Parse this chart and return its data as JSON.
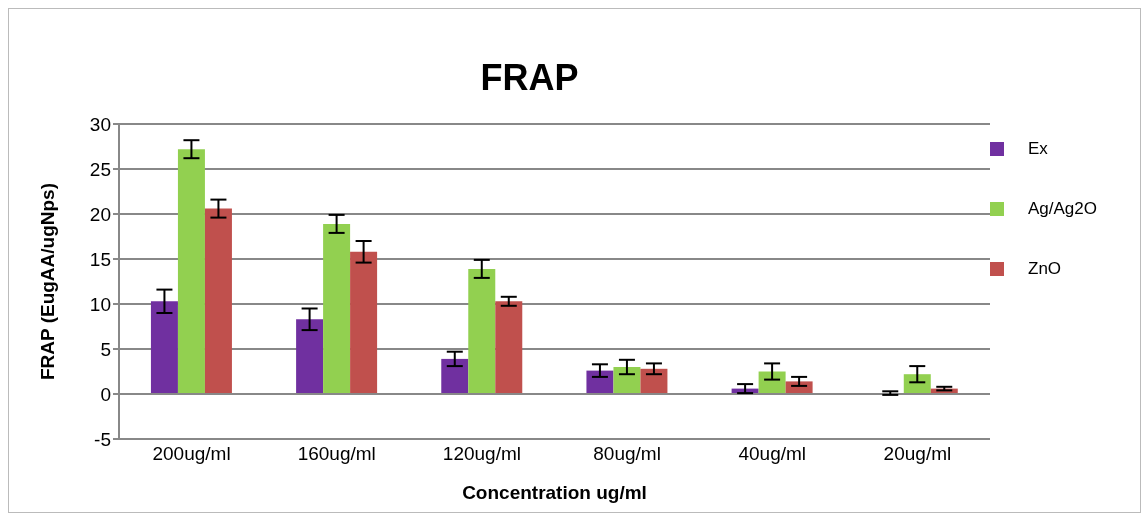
{
  "chart_data": {
    "type": "bar",
    "title": "FRAP",
    "xlabel": "Concentration ug/ml",
    "ylabel": "FRAP (EugAA/ugNps)",
    "categories": [
      "200ug/ml",
      "160ug/ml",
      "120ug/ml",
      "80ug/ml",
      "40ug/ml",
      "20ug/ml"
    ],
    "series": [
      {
        "name": "Ex",
        "color": "#7030a0",
        "values": [
          10.3,
          8.3,
          3.9,
          2.6,
          0.6,
          0.1
        ],
        "errors": [
          1.3,
          1.2,
          0.8,
          0.7,
          0.5,
          0.2
        ]
      },
      {
        "name": "Ag/Ag2O",
        "color": "#92d050",
        "values": [
          27.2,
          18.9,
          13.9,
          3.0,
          2.5,
          2.2
        ],
        "errors": [
          1.0,
          1.0,
          1.0,
          0.8,
          0.9,
          0.9
        ]
      },
      {
        "name": "ZnO",
        "color": "#c0504d",
        "values": [
          20.6,
          15.8,
          10.3,
          2.8,
          1.4,
          0.6
        ],
        "errors": [
          1.0,
          1.2,
          0.5,
          0.6,
          0.5,
          0.2
        ]
      }
    ],
    "ylim": [
      -5,
      30
    ],
    "yticks": [
      -5,
      0,
      5,
      10,
      15,
      20,
      25,
      30
    ],
    "grid": "y",
    "legend": "right"
  }
}
